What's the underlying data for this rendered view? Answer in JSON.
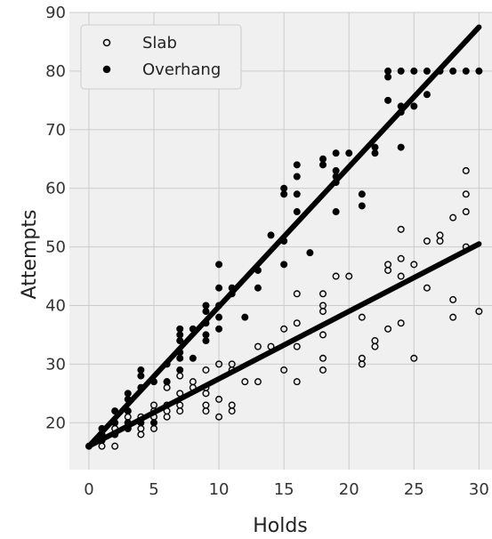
{
  "chart_data": {
    "type": "scatter",
    "xlabel": "Holds",
    "ylabel": "Attempts",
    "xlim": [
      -1.5,
      31
    ],
    "ylim": [
      12,
      90
    ],
    "xticks": [
      0,
      5,
      10,
      15,
      20,
      25,
      30
    ],
    "yticks": [
      20,
      30,
      40,
      50,
      60,
      70,
      80,
      90
    ],
    "grid": true,
    "legend": "top-left",
    "colors": {
      "background": "#f0f0f0",
      "grid": "#cbcbcb",
      "marker": "#000000",
      "line": "#000000"
    },
    "series": [
      {
        "name": "Slab",
        "marker": "open-circle",
        "points": [
          [
            1,
            16
          ],
          [
            1,
            17
          ],
          [
            2,
            16
          ],
          [
            2,
            18
          ],
          [
            2,
            19
          ],
          [
            3,
            19
          ],
          [
            3,
            20
          ],
          [
            3,
            21
          ],
          [
            3,
            22
          ],
          [
            4,
            18
          ],
          [
            4,
            19
          ],
          [
            4,
            21
          ],
          [
            5,
            19
          ],
          [
            5,
            21
          ],
          [
            5,
            22
          ],
          [
            5,
            23
          ],
          [
            6,
            21
          ],
          [
            6,
            22
          ],
          [
            6,
            23
          ],
          [
            6,
            26
          ],
          [
            6,
            27
          ],
          [
            7,
            22
          ],
          [
            7,
            23
          ],
          [
            7,
            25
          ],
          [
            7,
            28
          ],
          [
            8,
            26
          ],
          [
            8,
            27
          ],
          [
            9,
            22
          ],
          [
            9,
            23
          ],
          [
            9,
            25
          ],
          [
            9,
            26
          ],
          [
            9,
            29
          ],
          [
            10,
            21
          ],
          [
            10,
            24
          ],
          [
            10,
            30
          ],
          [
            11,
            22
          ],
          [
            11,
            23
          ],
          [
            11,
            29
          ],
          [
            11,
            30
          ],
          [
            12,
            27
          ],
          [
            13,
            27
          ],
          [
            13,
            33
          ],
          [
            14,
            33
          ],
          [
            15,
            29
          ],
          [
            15,
            36
          ],
          [
            16,
            27
          ],
          [
            16,
            33
          ],
          [
            16,
            37
          ],
          [
            16,
            42
          ],
          [
            18,
            29
          ],
          [
            18,
            31
          ],
          [
            18,
            35
          ],
          [
            18,
            39
          ],
          [
            18,
            40
          ],
          [
            18,
            42
          ],
          [
            19,
            45
          ],
          [
            20,
            45
          ],
          [
            21,
            30
          ],
          [
            21,
            31
          ],
          [
            21,
            38
          ],
          [
            22,
            33
          ],
          [
            22,
            34
          ],
          [
            23,
            36
          ],
          [
            23,
            46
          ],
          [
            23,
            47
          ],
          [
            24,
            37
          ],
          [
            24,
            45
          ],
          [
            24,
            48
          ],
          [
            24,
            53
          ],
          [
            25,
            31
          ],
          [
            25,
            47
          ],
          [
            26,
            43
          ],
          [
            26,
            51
          ],
          [
            27,
            51
          ],
          [
            27,
            52
          ],
          [
            28,
            38
          ],
          [
            28,
            41
          ],
          [
            28,
            55
          ],
          [
            29,
            50
          ],
          [
            29,
            56
          ],
          [
            29,
            59
          ],
          [
            29,
            63
          ],
          [
            30,
            39
          ]
        ]
      },
      {
        "name": "Overhang",
        "marker": "filled-circle",
        "points": [
          [
            0,
            16
          ],
          [
            1,
            17
          ],
          [
            1,
            18
          ],
          [
            1,
            19
          ],
          [
            2,
            18
          ],
          [
            2,
            20
          ],
          [
            2,
            22
          ],
          [
            3,
            19
          ],
          [
            3,
            20
          ],
          [
            3,
            22
          ],
          [
            3,
            24
          ],
          [
            3,
            25
          ],
          [
            4,
            20
          ],
          [
            4,
            26
          ],
          [
            4,
            28
          ],
          [
            4,
            29
          ],
          [
            5,
            20
          ],
          [
            5,
            27
          ],
          [
            6,
            27
          ],
          [
            6,
            30
          ],
          [
            7,
            29
          ],
          [
            7,
            31
          ],
          [
            7,
            32
          ],
          [
            7,
            34
          ],
          [
            7,
            35
          ],
          [
            7,
            36
          ],
          [
            8,
            31
          ],
          [
            8,
            36
          ],
          [
            9,
            34
          ],
          [
            9,
            35
          ],
          [
            9,
            37
          ],
          [
            9,
            39
          ],
          [
            9,
            40
          ],
          [
            10,
            36
          ],
          [
            10,
            38
          ],
          [
            10,
            40
          ],
          [
            10,
            43
          ],
          [
            10,
            47
          ],
          [
            11,
            42
          ],
          [
            11,
            43
          ],
          [
            12,
            38
          ],
          [
            13,
            43
          ],
          [
            13,
            46
          ],
          [
            14,
            52
          ],
          [
            15,
            47
          ],
          [
            15,
            51
          ],
          [
            15,
            59
          ],
          [
            15,
            60
          ],
          [
            16,
            56
          ],
          [
            16,
            59
          ],
          [
            16,
            62
          ],
          [
            16,
            64
          ],
          [
            17,
            49
          ],
          [
            18,
            64
          ],
          [
            18,
            65
          ],
          [
            19,
            56
          ],
          [
            19,
            61
          ],
          [
            19,
            62
          ],
          [
            19,
            63
          ],
          [
            19,
            66
          ],
          [
            20,
            66
          ],
          [
            21,
            57
          ],
          [
            21,
            59
          ],
          [
            22,
            66
          ],
          [
            22,
            67
          ],
          [
            23,
            75
          ],
          [
            23,
            79
          ],
          [
            23,
            80
          ],
          [
            24,
            67
          ],
          [
            24,
            73
          ],
          [
            24,
            74
          ],
          [
            24,
            80
          ],
          [
            25,
            74
          ],
          [
            25,
            80
          ],
          [
            26,
            76
          ],
          [
            26,
            80
          ],
          [
            27,
            80
          ],
          [
            28,
            80
          ],
          [
            29,
            80
          ],
          [
            30,
            80
          ]
        ]
      }
    ],
    "fit_lines": [
      {
        "series": "Slab",
        "from": [
          0,
          16
        ],
        "to": [
          30,
          50.5
        ]
      },
      {
        "series": "Overhang",
        "from": [
          0,
          16
        ],
        "to": [
          30,
          87.5
        ]
      }
    ]
  }
}
